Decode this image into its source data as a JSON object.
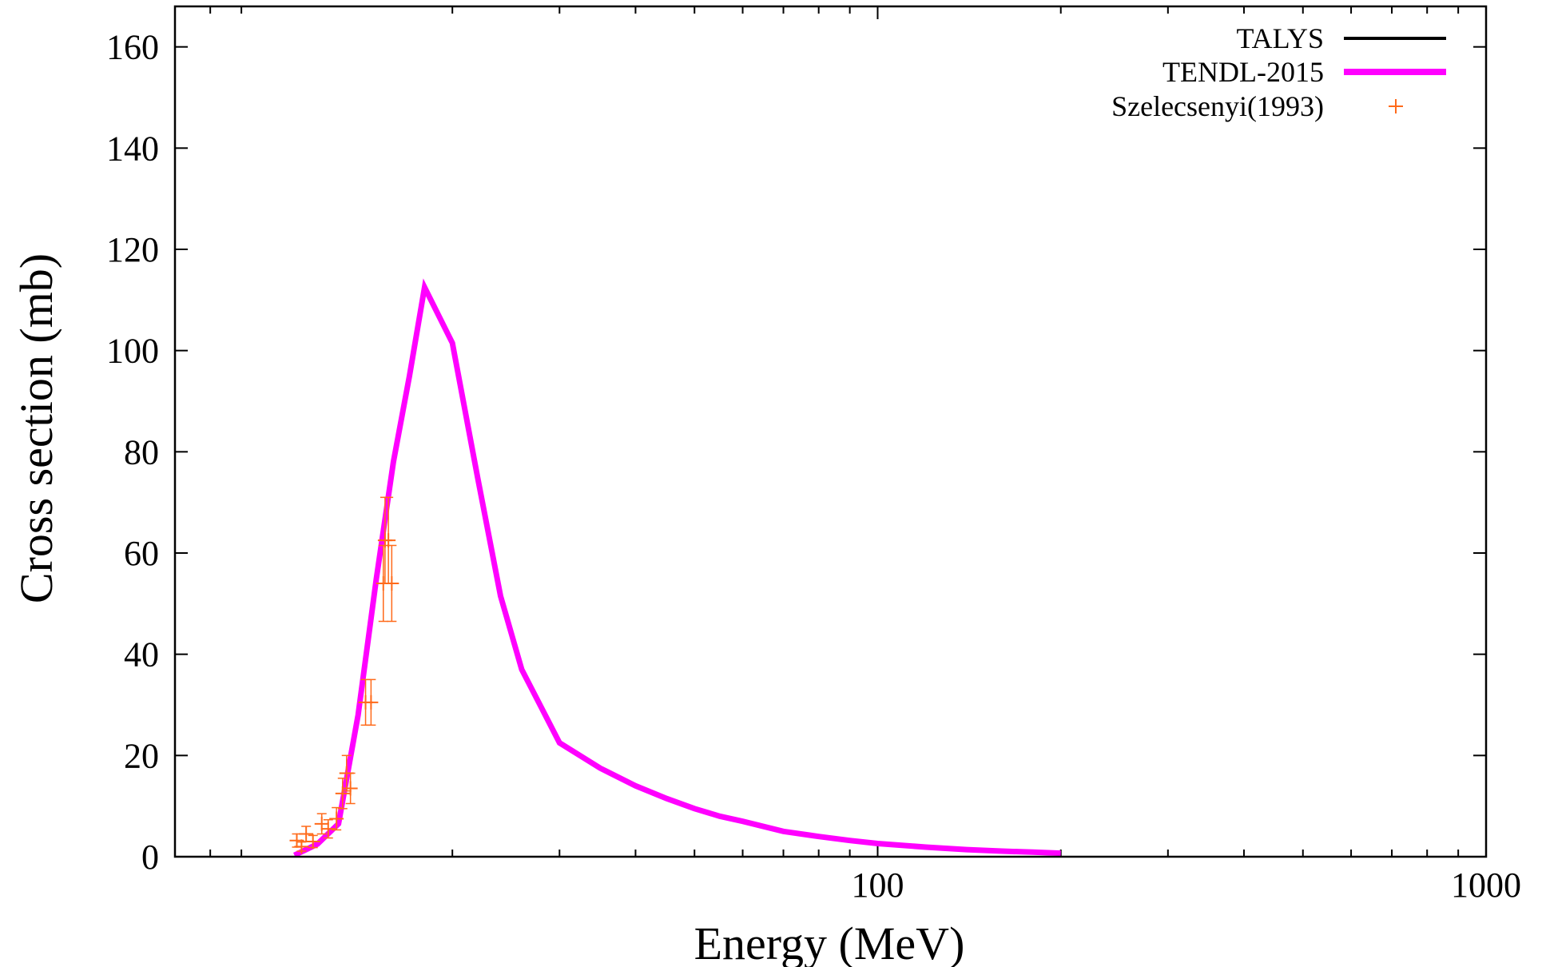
{
  "chart_data": {
    "type": "line",
    "title": "",
    "xlabel": "Energy (MeV)",
    "ylabel": "Cross section (mb)",
    "x_scale": "log",
    "xlim": [
      7,
      1000
    ],
    "ylim": [
      0,
      168
    ],
    "x_ticks": [
      {
        "value": 100,
        "label": "100"
      },
      {
        "value": 1000,
        "label": "1000"
      }
    ],
    "y_ticks": [
      {
        "value": 0,
        "label": "0"
      },
      {
        "value": 20,
        "label": "20"
      },
      {
        "value": 40,
        "label": "40"
      },
      {
        "value": 60,
        "label": "60"
      },
      {
        "value": 80,
        "label": "80"
      },
      {
        "value": 100,
        "label": "100"
      },
      {
        "value": 120,
        "label": "120"
      },
      {
        "value": 140,
        "label": "140"
      },
      {
        "value": 160,
        "label": "160"
      }
    ],
    "grid": false,
    "legend_position": "top-right",
    "series": [
      {
        "name": "TALYS",
        "style": "line",
        "color": "#000000",
        "x": [],
        "y": []
      },
      {
        "name": "TENDL-2015",
        "style": "line",
        "color": "#ff00ff",
        "x": [
          11.0,
          12.0,
          13.0,
          14.0,
          15.0,
          16.0,
          17.0,
          18.0,
          20.0,
          22.0,
          24.0,
          26.0,
          28.0,
          30.0,
          35.0,
          40.0,
          45.0,
          50.0,
          55.0,
          60.0,
          70.0,
          80.0,
          90.0,
          100.0,
          120.0,
          140.0,
          160.0,
          180.0,
          200.0
        ],
        "y": [
          0.3,
          2.5,
          6.5,
          28.0,
          55.0,
          78.0,
          95.0,
          112.5,
          101.5,
          75.0,
          51.5,
          37.0,
          29.5,
          22.5,
          17.5,
          14.0,
          11.5,
          9.5,
          8.0,
          7.0,
          5.0,
          4.0,
          3.2,
          2.6,
          1.9,
          1.4,
          1.1,
          0.9,
          0.7
        ]
      },
      {
        "name": "Szelecsenyi(1993)",
        "style": "points",
        "color": "#ff6a1a",
        "points": [
          {
            "x": 11.1,
            "y": 3.2,
            "err": 1.3
          },
          {
            "x": 11.3,
            "y": 2.0,
            "err": 0.9
          },
          {
            "x": 11.5,
            "y": 4.5,
            "err": 1.5
          },
          {
            "x": 11.8,
            "y": 3.0,
            "err": 1.2
          },
          {
            "x": 12.2,
            "y": 6.5,
            "err": 2.0
          },
          {
            "x": 12.5,
            "y": 5.5,
            "err": 1.8
          },
          {
            "x": 12.9,
            "y": 7.5,
            "err": 2.2
          },
          {
            "x": 13.2,
            "y": 12.5,
            "err": 3.0
          },
          {
            "x": 13.4,
            "y": 16.5,
            "err": 3.5
          },
          {
            "x": 13.6,
            "y": 13.5,
            "err": 3.0
          },
          {
            "x": 14.4,
            "y": 30.5,
            "err": 4.5
          },
          {
            "x": 14.7,
            "y": 30.5,
            "err": 4.5
          },
          {
            "x": 15.4,
            "y": 54.0,
            "err": 7.5
          },
          {
            "x": 15.5,
            "y": 62.5,
            "err": 8.5
          },
          {
            "x": 15.7,
            "y": 62.5,
            "err": 8.5
          },
          {
            "x": 15.9,
            "y": 54.0,
            "err": 7.5
          }
        ]
      }
    ]
  }
}
